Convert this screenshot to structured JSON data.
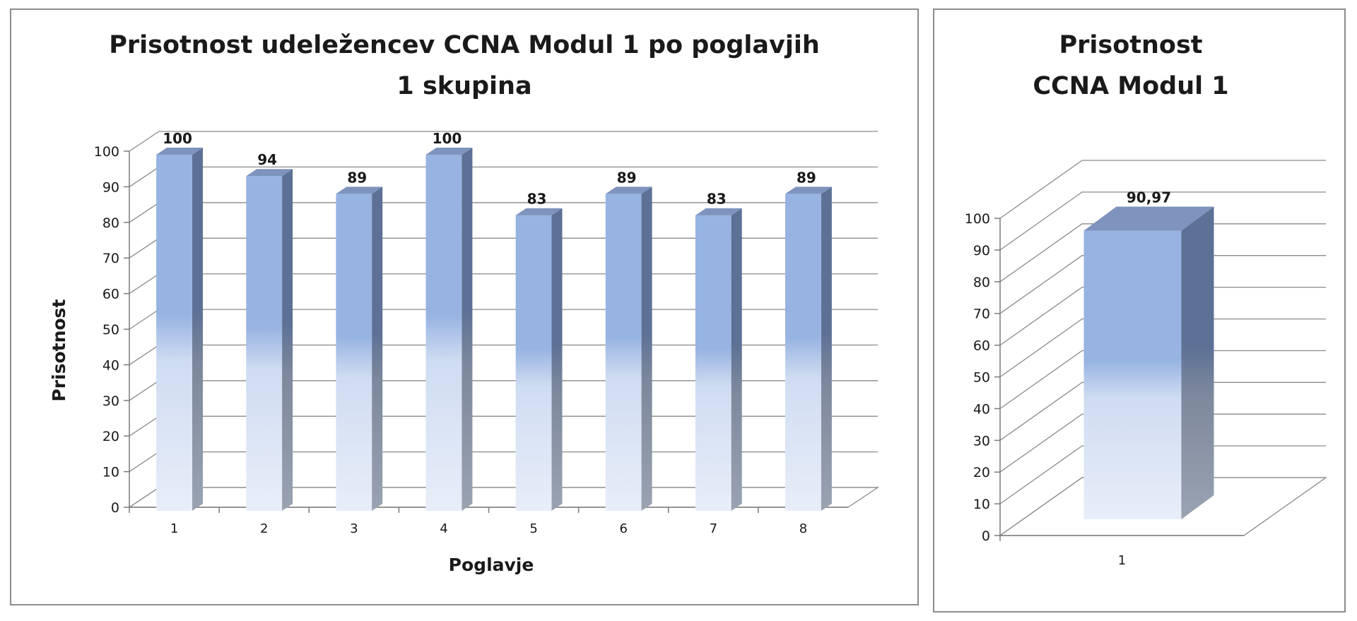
{
  "chart_data": [
    {
      "type": "bar",
      "title_lines": [
        "Prisotnost udeležencev CCNA Modul 1 po poglavjih",
        "1 skupina"
      ],
      "xlabel": "Poglavje",
      "ylabel": "Prisotnost",
      "categories": [
        "1",
        "2",
        "3",
        "4",
        "5",
        "6",
        "7",
        "8"
      ],
      "values": [
        100,
        94,
        89,
        100,
        83,
        89,
        83,
        89
      ],
      "data_labels": [
        "100",
        "94",
        "89",
        "100",
        "83",
        "89",
        "83",
        "89"
      ],
      "ylim": [
        0,
        100
      ],
      "yticks": [
        "0",
        "10",
        "20",
        "30",
        "40",
        "50",
        "60",
        "70",
        "80",
        "90",
        "100"
      ],
      "grid": true,
      "legend": "none"
    },
    {
      "type": "bar",
      "title_lines": [
        "Prisotnost",
        "CCNA Modul 1"
      ],
      "xlabel": "",
      "ylabel": "",
      "categories": [
        "1"
      ],
      "values": [
        90.97
      ],
      "data_labels": [
        "90,97"
      ],
      "ylim": [
        0,
        100
      ],
      "yticks": [
        "0",
        "10",
        "20",
        "30",
        "40",
        "50",
        "60",
        "70",
        "80",
        "90",
        "100"
      ],
      "grid": true,
      "legend": "none"
    }
  ],
  "colors": {
    "bar_top": "#97b3e2",
    "bar_bottom": "#e6edf9",
    "bar_side_top": "#5f7395",
    "bar_side_bottom": "#8e99ab",
    "bar_cap": "#7e93bd",
    "grid": "#8a8a8a"
  }
}
